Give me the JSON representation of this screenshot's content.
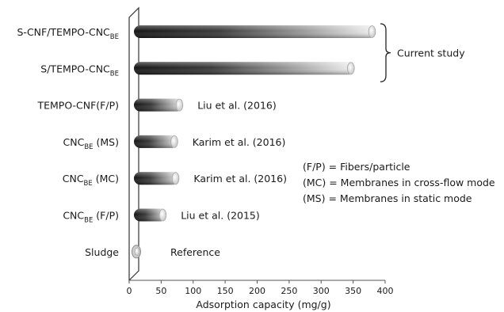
{
  "chart_data": {
    "type": "bar",
    "orientation": "horizontal",
    "bar_style": "3d-cylinder",
    "bar_color": "#2a2a2a",
    "categories": [
      {
        "parts": [
          {
            "text": "S-CNF/TEMPO-CNC"
          },
          {
            "text": "BE",
            "sub": true
          }
        ]
      },
      {
        "parts": [
          {
            "text": "S/TEMPO-CNC"
          },
          {
            "text": "BE",
            "sub": true
          }
        ]
      },
      {
        "parts": [
          {
            "text": "TEMPO-CNF(F/P)"
          }
        ]
      },
      {
        "parts": [
          {
            "text": "CNC"
          },
          {
            "text": "BE",
            "sub": true
          },
          {
            "text": " (MS)"
          }
        ]
      },
      {
        "parts": [
          {
            "text": "CNC"
          },
          {
            "text": "BE",
            "sub": true
          },
          {
            "text": " (MC)"
          }
        ]
      },
      {
        "parts": [
          {
            "text": "CNC"
          },
          {
            "text": "BE",
            "sub": true
          },
          {
            "text": " (F/P)"
          }
        ]
      },
      {
        "parts": [
          {
            "text": "Sludge"
          }
        ]
      }
    ],
    "values": [
      383,
      350,
      82,
      74,
      76,
      56,
      12
    ],
    "bar_labels": [
      "",
      "",
      "Liu et al. (2016)",
      "Karim et al. (2016)",
      "Karim et al. (2016)",
      "Liu et al. (2015)",
      "Reference"
    ],
    "group_label": "Current study",
    "xlabel": "Adsorption capacity (mg/g)",
    "xlim": [
      0,
      400
    ],
    "xticks": [
      0,
      50,
      100,
      150,
      200,
      250,
      300,
      350,
      400
    ],
    "grid": false,
    "legend_notes": [
      "(F/P) = Fibers/particle",
      "(MC) = Membranes in cross-flow mode",
      "(MS) = Membranes in static mode"
    ]
  }
}
